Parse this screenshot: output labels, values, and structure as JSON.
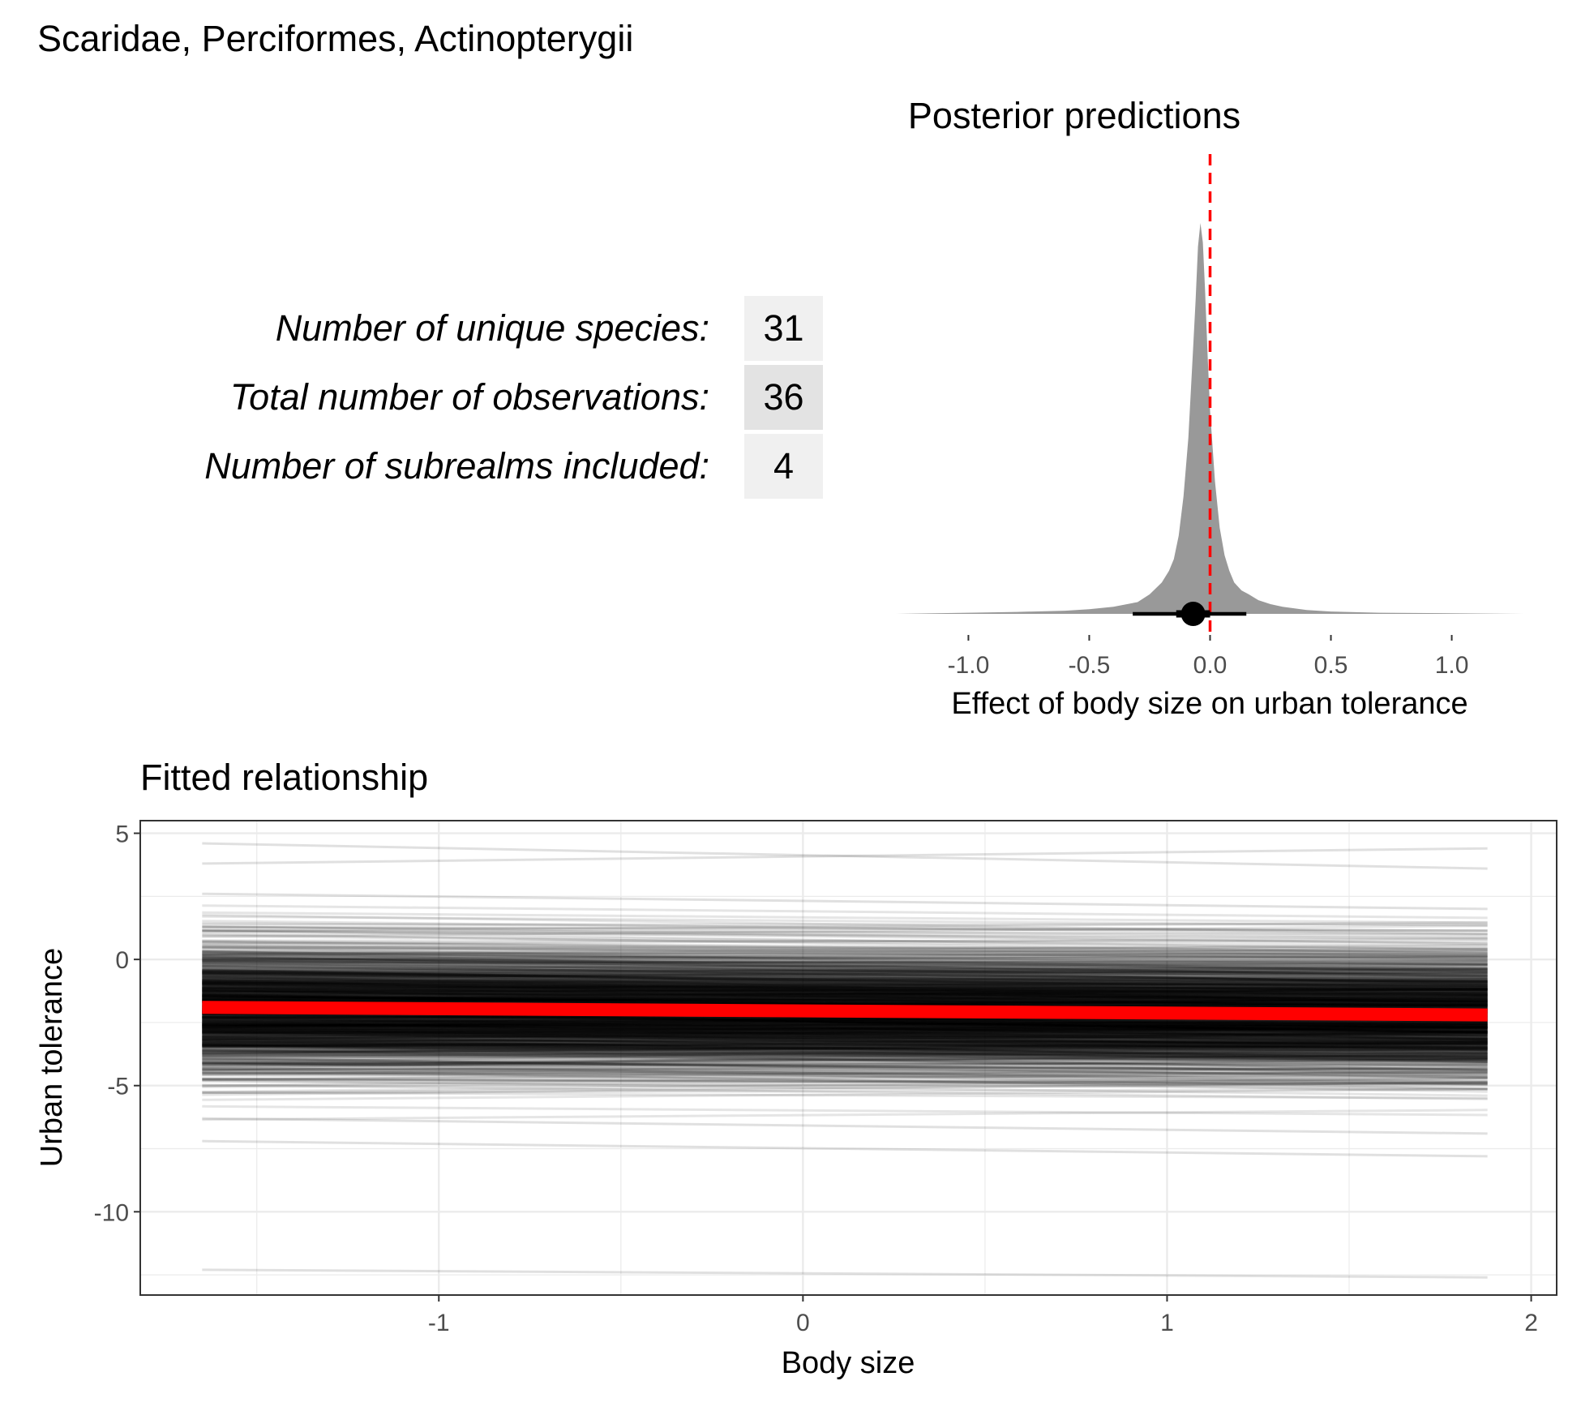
{
  "header": {
    "title": "Scaridae, Perciformes, Actinopterygii"
  },
  "stats": [
    {
      "label": "Number of unique species:",
      "value": "31"
    },
    {
      "label": "Total number of observations:",
      "value": "36"
    },
    {
      "label": "Number of subrealms included:",
      "value": "4"
    }
  ],
  "colors": {
    "density_fill": "#999999",
    "reference_line": "#ff0000",
    "mean_fit_line": "#ff0000",
    "posterior_draw": "#000000",
    "grid": "#ebebeb",
    "panel_border": "#333333",
    "stat_cell_light": "#f0f0f0",
    "stat_cell_dark": "#e3e3e3"
  },
  "chart_data": [
    {
      "type": "area",
      "title": "Posterior predictions",
      "xlabel": "Effect of body size on urban tolerance",
      "ylabel": "",
      "xlim": [
        -1.3,
        1.3
      ],
      "x_ticks": [
        -1.0,
        -0.5,
        0.0,
        0.5,
        1.0
      ],
      "x_tick_labels": [
        "-1.0",
        "-0.5",
        "0.0",
        "0.5",
        "1.0"
      ],
      "grid": false,
      "reference_line": {
        "x": 0.0,
        "style": "dashed",
        "color": "#ff0000"
      },
      "density": {
        "x": [
          -1.3,
          -1.0,
          -0.8,
          -0.6,
          -0.5,
          -0.4,
          -0.3,
          -0.25,
          -0.2,
          -0.17,
          -0.15,
          -0.13,
          -0.11,
          -0.09,
          -0.07,
          -0.06,
          -0.05,
          -0.04,
          -0.03,
          -0.02,
          -0.01,
          0.0,
          0.02,
          0.04,
          0.06,
          0.08,
          0.1,
          0.13,
          0.16,
          0.2,
          0.25,
          0.3,
          0.4,
          0.5,
          0.7,
          0.9,
          1.1,
          1.3
        ],
        "y": [
          0.0,
          0.003,
          0.005,
          0.008,
          0.012,
          0.018,
          0.03,
          0.05,
          0.08,
          0.11,
          0.14,
          0.2,
          0.3,
          0.45,
          0.68,
          0.8,
          0.94,
          1.0,
          0.95,
          0.82,
          0.66,
          0.52,
          0.34,
          0.22,
          0.15,
          0.11,
          0.08,
          0.06,
          0.05,
          0.035,
          0.025,
          0.018,
          0.01,
          0.006,
          0.003,
          0.002,
          0.001,
          0.0
        ]
      },
      "point_estimate": -0.07,
      "interval": [
        -0.32,
        0.15
      ],
      "inner_interval": [
        -0.14,
        0.0
      ]
    },
    {
      "type": "line",
      "title": "Fitted relationship",
      "xlabel": "Body size",
      "ylabel": "Urban tolerance",
      "xlim": [
        -1.82,
        2.07
      ],
      "ylim": [
        -13.3,
        5.5
      ],
      "x_ticks": [
        -1,
        0,
        1,
        2
      ],
      "x_tick_labels": [
        "-1",
        "0",
        "1",
        "2"
      ],
      "y_ticks": [
        5,
        0,
        -5,
        -10
      ],
      "y_tick_labels": [
        "5",
        "0",
        "-5",
        "-10"
      ],
      "grid": true,
      "x_range": [
        -1.65,
        1.88
      ],
      "mean_line": {
        "name": "",
        "y_start": -1.9,
        "y_end": -2.2,
        "color": "#ff0000"
      },
      "posterior_draws": {
        "count": 1000,
        "intercept_mean": -2.05,
        "intercept_sd": 1.3,
        "slope_mean": -0.07,
        "slope_sd": 0.12,
        "outliers": [
          {
            "y_start": 4.6,
            "y_end": 3.6
          },
          {
            "y_start": 3.8,
            "y_end": 4.4
          },
          {
            "y_start": 2.6,
            "y_end": 2.0
          },
          {
            "y_start": -6.3,
            "y_end": -6.9
          },
          {
            "y_start": -7.2,
            "y_end": -7.8
          },
          {
            "y_start": -12.3,
            "y_end": -12.6
          }
        ]
      }
    }
  ]
}
